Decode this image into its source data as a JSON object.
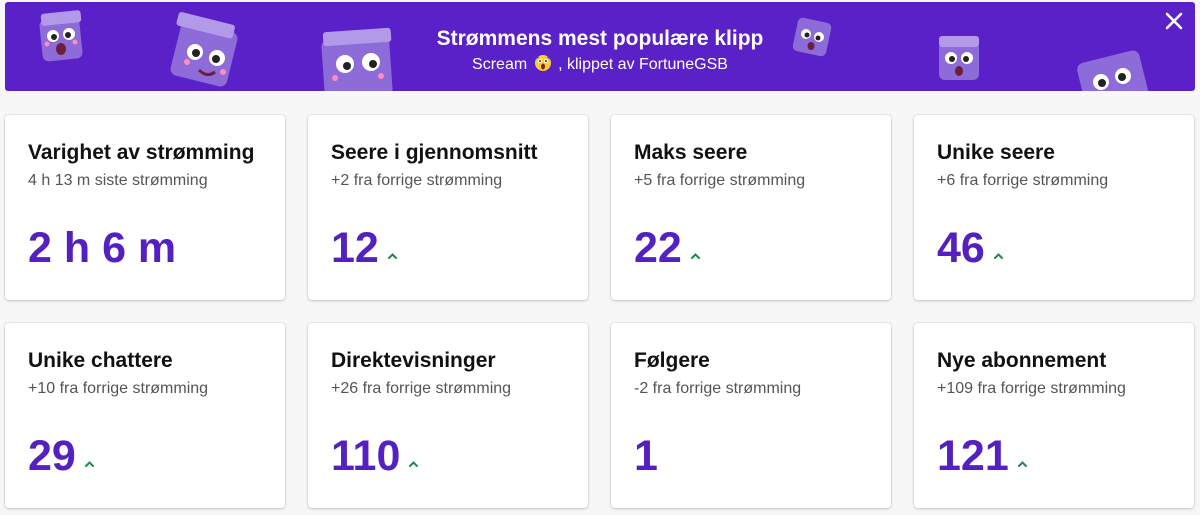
{
  "banner": {
    "title": "Strømmens mest populære klipp",
    "clip_name": "Scream",
    "clipped_by": ", klippet av FortuneGSB",
    "background": "#5b21c9"
  },
  "stats": [
    {
      "title": "Varighet av strømming",
      "subtitle": "4 h 13 m siste strømming",
      "value": "2 h 6 m",
      "trend": "none"
    },
    {
      "title": "Seere i gjennomsnitt",
      "subtitle": "+2 fra forrige strømming",
      "value": "12",
      "trend": "up"
    },
    {
      "title": "Maks seere",
      "subtitle": "+5 fra forrige strømming",
      "value": "22",
      "trend": "up"
    },
    {
      "title": "Unike seere",
      "subtitle": "+6 fra forrige strømming",
      "value": "46",
      "trend": "up"
    },
    {
      "title": "Unike chattere",
      "subtitle": "+10 fra forrige strømming",
      "value": "29",
      "trend": "up"
    },
    {
      "title": "Direktevisninger",
      "subtitle": "+26 fra forrige strømming",
      "value": "110",
      "trend": "up"
    },
    {
      "title": "Følgere",
      "subtitle": "-2 fra forrige strømming",
      "value": "1",
      "trend": "none"
    },
    {
      "title": "Nye abonnement",
      "subtitle": "+109 fra forrige strømming",
      "value": "121",
      "trend": "up"
    }
  ],
  "colors": {
    "accent": "#5420c2",
    "trend_up": "#1f8a4c"
  }
}
